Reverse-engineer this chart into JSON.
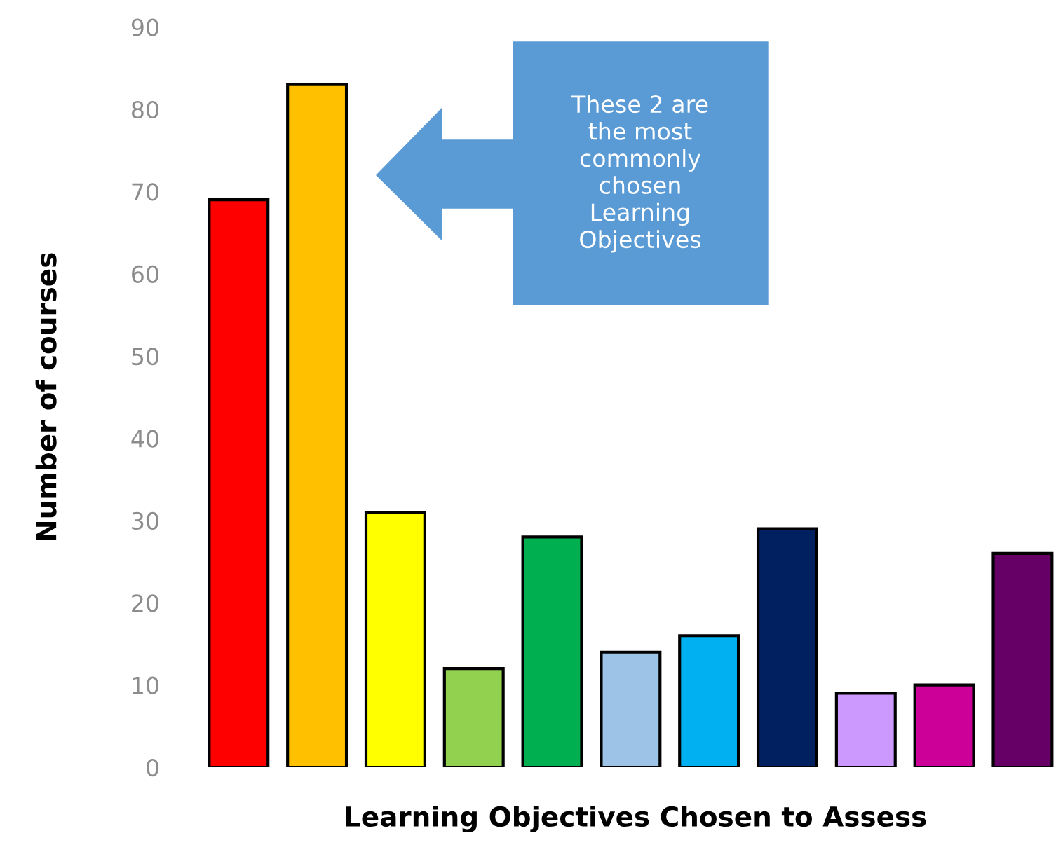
{
  "chart_data": {
    "type": "bar",
    "xlabel": "Learning Objectives Chosen to Assess",
    "ylabel": "Number of courses",
    "categories": [
      null,
      null,
      null,
      null,
      null,
      null,
      null,
      null,
      null,
      null,
      null
    ],
    "values": [
      69,
      83,
      31,
      12,
      28,
      14,
      16,
      29,
      9,
      10,
      26
    ],
    "colors": [
      "#ff0000",
      "#ffc000",
      "#ffff00",
      "#92d050",
      "#00b050",
      "#9dc3e6",
      "#00b0f0",
      "#002060",
      "#cc99ff",
      "#cc0099",
      "#660066"
    ],
    "ylim": [
      0,
      90
    ],
    "yticks": [
      0,
      10,
      20,
      30,
      40,
      50,
      60,
      70,
      80,
      90
    ],
    "annotations": [
      "These 2 are\nthe most\ncommonly\nchosen\nLearning\nObjectives"
    ]
  }
}
